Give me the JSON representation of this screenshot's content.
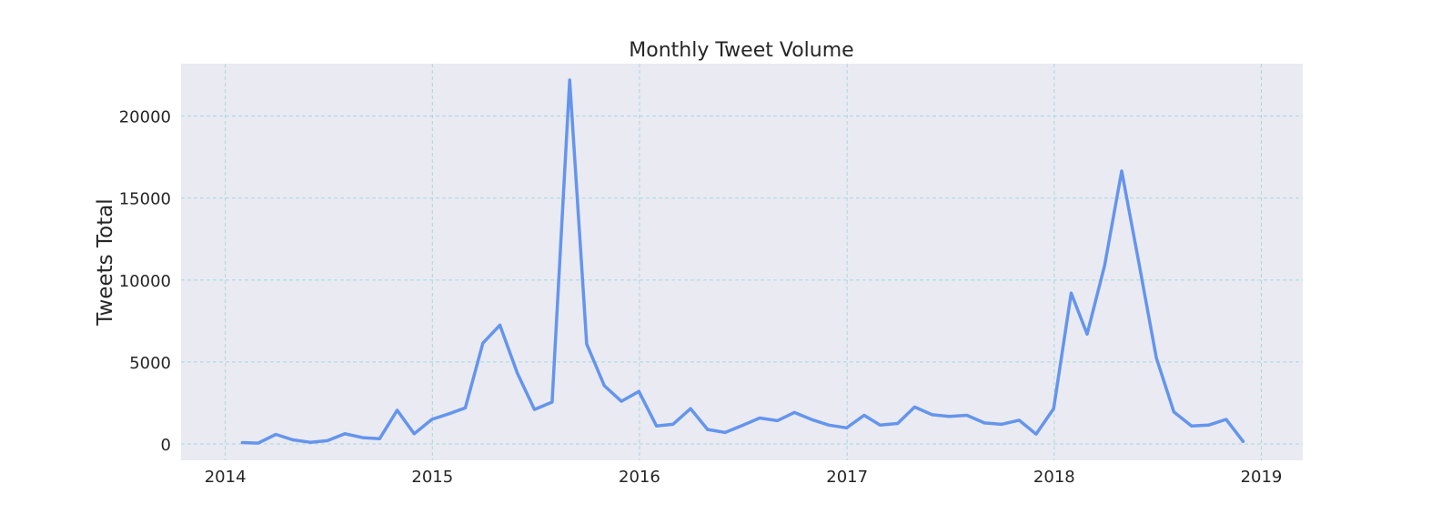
{
  "chart_data": {
    "type": "line",
    "title": "Monthly Tweet Volume",
    "xlabel": "",
    "ylabel": "Tweets Total",
    "x_tick_labels": [
      "2014",
      "2015",
      "2016",
      "2017",
      "2018",
      "2019"
    ],
    "y_tick_labels": [
      "0",
      "5000",
      "10000",
      "15000",
      "20000"
    ],
    "y_ticks": [
      0,
      5000,
      10000,
      15000,
      20000
    ],
    "x_ticks": [
      "2014-01-01",
      "2015-01-01",
      "2016-01-01",
      "2017-01-01",
      "2018-01-01",
      "2019-01-01"
    ],
    "xlim": [
      "2013-10-15",
      "2019-03-15"
    ],
    "ylim": [
      -1000,
      23200
    ],
    "grid": true,
    "legend": false,
    "background_color": "#eaeaf2",
    "grid_color": "#a8d8dc",
    "line_color": "#6495ed",
    "x": [
      "2014-01-31",
      "2014-02-28",
      "2014-03-31",
      "2014-04-30",
      "2014-05-31",
      "2014-06-30",
      "2014-07-31",
      "2014-08-31",
      "2014-09-30",
      "2014-10-31",
      "2014-11-30",
      "2014-12-31",
      "2015-01-31",
      "2015-02-28",
      "2015-03-31",
      "2015-04-30",
      "2015-05-31",
      "2015-06-30",
      "2015-07-31",
      "2015-08-31",
      "2015-09-30",
      "2015-10-31",
      "2015-11-30",
      "2015-12-31",
      "2016-01-31",
      "2016-02-29",
      "2016-03-31",
      "2016-04-30",
      "2016-05-31",
      "2016-06-30",
      "2016-07-31",
      "2016-08-31",
      "2016-09-30",
      "2016-10-31",
      "2016-11-30",
      "2016-12-31",
      "2017-01-31",
      "2017-02-28",
      "2017-03-31",
      "2017-04-30",
      "2017-05-31",
      "2017-06-30",
      "2017-07-31",
      "2017-08-31",
      "2017-09-30",
      "2017-10-31",
      "2017-11-30",
      "2017-12-31",
      "2018-01-31",
      "2018-02-28",
      "2018-03-31",
      "2018-04-30",
      "2018-05-31",
      "2018-06-30",
      "2018-07-31",
      "2018-08-31",
      "2018-09-30",
      "2018-10-31",
      "2018-11-30"
    ],
    "series": [
      {
        "values": [
          80,
          50,
          580,
          250,
          100,
          200,
          620,
          380,
          320,
          2050,
          620,
          1500,
          1850,
          2200,
          6150,
          7250,
          4300,
          2100,
          2550,
          22200,
          6100,
          3550,
          2600,
          3200,
          1100,
          1200,
          2150,
          880,
          700,
          1120,
          1580,
          1420,
          1920,
          1480,
          1150,
          980,
          1750,
          1150,
          1250,
          2250,
          1780,
          1680,
          1750,
          1280,
          1200,
          1450,
          600,
          2150,
          9200,
          6700,
          10900,
          16650,
          10900,
          5250,
          1950,
          1100,
          1150,
          1500,
          150
        ]
      }
    ]
  }
}
